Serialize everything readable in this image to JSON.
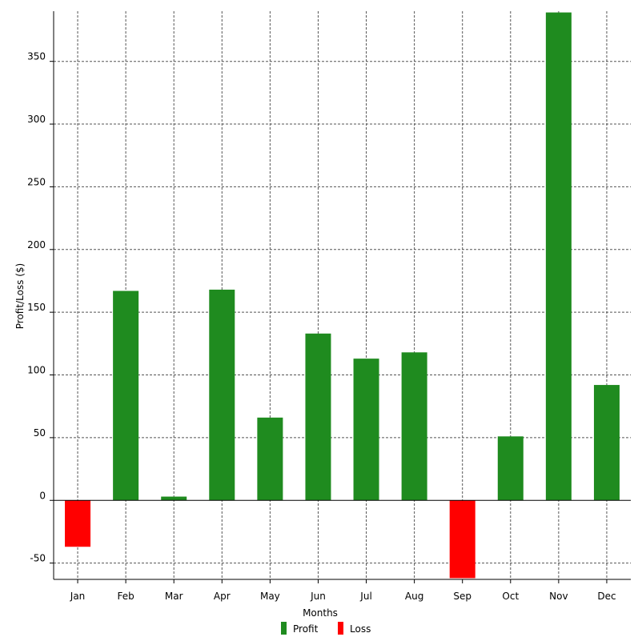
{
  "chart_data": {
    "type": "bar",
    "xlabel": "Months",
    "ylabel": "Profit/Loss ($)",
    "categories": [
      "Jan",
      "Feb",
      "Mar",
      "Apr",
      "May",
      "Jun",
      "Jul",
      "Aug",
      "Sep",
      "Oct",
      "Nov",
      "Dec"
    ],
    "values": [
      -37,
      167,
      3,
      168,
      66,
      133,
      113,
      118,
      -62,
      51,
      389,
      92
    ],
    "ylim": [
      -63,
      390
    ],
    "yticks": [
      -50,
      0,
      50,
      100,
      150,
      200,
      250,
      300,
      350
    ],
    "grid": true,
    "legend": {
      "position": "bottom",
      "items": [
        {
          "label": "Profit",
          "color": "#1f8b1f"
        },
        {
          "label": "Loss",
          "color": "#ff0000"
        }
      ]
    },
    "colors": {
      "profit": "#1f8b1f",
      "loss": "#ff0000"
    }
  }
}
